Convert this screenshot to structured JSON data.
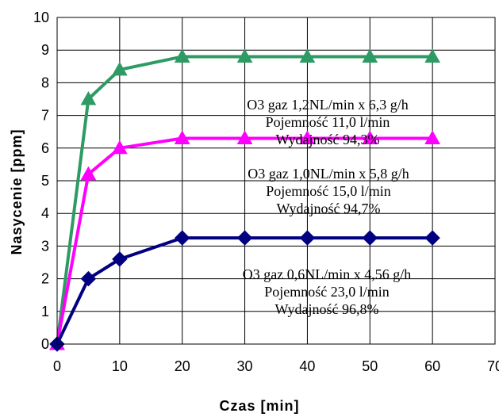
{
  "chart_data": {
    "type": "line",
    "title": "",
    "xlabel": "Czas [min]",
    "ylabel": "Nasycenie [ppm]",
    "xlim": [
      0,
      70
    ],
    "ylim": [
      0,
      10
    ],
    "xticks": [
      0,
      10,
      20,
      30,
      40,
      50,
      60,
      70
    ],
    "yticks": [
      0,
      1,
      2,
      3,
      4,
      5,
      6,
      7,
      8,
      9,
      10
    ],
    "grid": true,
    "legend": "none",
    "x": [
      0,
      5,
      10,
      20,
      30,
      40,
      50,
      60
    ],
    "series": [
      {
        "color": "#2e9b64",
        "marker": "triangle",
        "values": [
          0,
          7.5,
          8.4,
          8.8,
          8.8,
          8.8,
          8.8,
          8.8
        ],
        "annotation": [
          "O3 gaz 1,2NL/min x 6,3 g/h",
          "Pojemność 11,0 l/min",
          "Wydajność 94,3%"
        ]
      },
      {
        "color": "#ff00ff",
        "marker": "triangle",
        "values": [
          0,
          5.2,
          6.0,
          6.3,
          6.3,
          6.3,
          6.3,
          6.3
        ],
        "annotation": [
          "O3 gaz 1,0NL/min x 5,8 g/h",
          "Pojemność 15,0 l/min",
          "Wydajność 94,7%"
        ]
      },
      {
        "color": "#000080",
        "marker": "diamond",
        "values": [
          0,
          2.0,
          2.6,
          3.25,
          3.25,
          3.25,
          3.25,
          3.25
        ],
        "annotation": [
          "O3 gaz 0,6NL/min x 4,56 g/h",
          "Pojemność 23,0 l/min",
          "Wydajność 96,8%"
        ]
      }
    ]
  }
}
